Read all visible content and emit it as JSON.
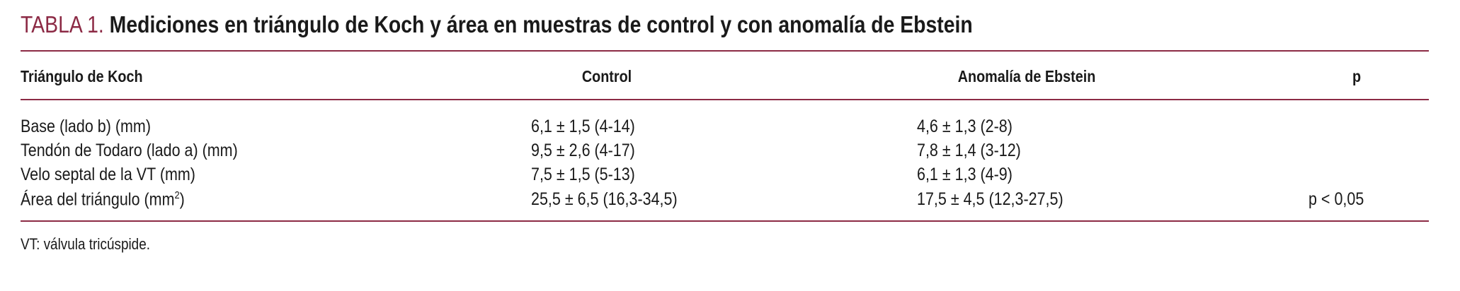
{
  "title": {
    "label": "TABLA 1.",
    "text": "Mediciones en triángulo de Koch y área en muestras de control y con anomalía de Ebstein"
  },
  "colors": {
    "accent": "#8c2a45",
    "text": "#1a1a1a"
  },
  "table": {
    "headers": [
      "Triángulo de Koch",
      "Control",
      "Anomalía de Ebstein",
      "p"
    ],
    "rows": [
      {
        "label": "Base (lado b) (mm)",
        "control": "6,1 ± 1,5 (4-14)",
        "ebstein": "4,6 ± 1,3 (2-8)",
        "p": ""
      },
      {
        "label": "Tendón de Todaro (lado a) (mm)",
        "control": "9,5 ± 2,6 (4-17)",
        "ebstein": "7,8 ± 1,4 (3-12)",
        "p": ""
      },
      {
        "label": "Velo septal de la VT (mm)",
        "control": "7,5 ± 1,5 (5-13)",
        "ebstein": "6,1 ± 1,3 (4-9)",
        "p": ""
      },
      {
        "label": "Área del triángulo (mm",
        "label_sup": "2",
        "label_end": ")",
        "control": "25,5 ± 6,5 (16,3-34,5)",
        "ebstein": "17,5 ± 4,5 (12,3-27,5)",
        "p": "p < 0,05"
      }
    ]
  },
  "footnote": "VT: válvula tricúspide."
}
